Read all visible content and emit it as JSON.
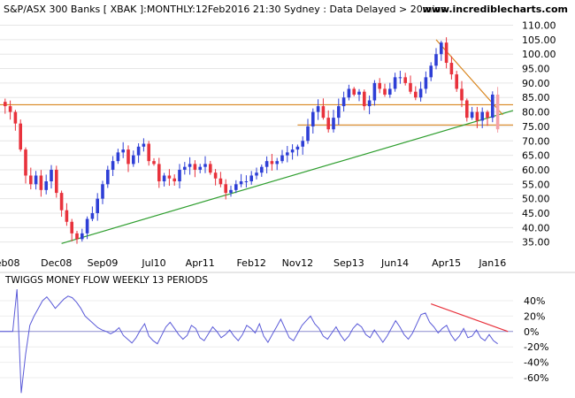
{
  "header": {
    "title": "S&P/ASX 300 Banks [ XBAK ]:MONTHLY:12Feb2016 21:30 Sydney : Data Delayed > 20mins",
    "site": "www.incrediblecharts.com"
  },
  "chart_data": [
    {
      "type": "candlestick",
      "title": "",
      "ylim": [
        30,
        112
      ],
      "yticks": [
        35,
        40,
        45,
        50,
        55,
        60,
        65,
        70,
        75,
        80,
        85,
        90,
        95,
        100,
        105,
        110
      ],
      "ytick_labels": [
        "35.00",
        "40.00",
        "45.00",
        "50.00",
        "55.00",
        "60.00",
        "65.00",
        "70.00",
        "75.00",
        "80.00",
        "85.00",
        "90.00",
        "95.00",
        "100.00",
        "105.00",
        "110.00"
      ],
      "x_labels": [
        {
          "label": "Feb08",
          "month": 1
        },
        {
          "label": "Dec08",
          "month": 11
        },
        {
          "label": "Sep09",
          "month": 20
        },
        {
          "label": "Jul10",
          "month": 30
        },
        {
          "label": "Apr11",
          "month": 39
        },
        {
          "label": "Feb12",
          "month": 49
        },
        {
          "label": "Nov12",
          "month": 58
        },
        {
          "label": "Sep13",
          "month": 68
        },
        {
          "label": "Jun14",
          "month": 77
        },
        {
          "label": "Apr15",
          "month": 87
        },
        {
          "label": "Jan16",
          "month": 96
        }
      ],
      "x_range_months": [
        0,
        100
      ],
      "up_color": "#2e3fd6",
      "down_color": "#e8323c",
      "last_color": "#f4a0a8",
      "closes": [
        82,
        80,
        76,
        67,
        58,
        55,
        58,
        53,
        56,
        60,
        52,
        46,
        42,
        38,
        36,
        38,
        43,
        45,
        50,
        55,
        60,
        63,
        66,
        67,
        62,
        65,
        68,
        69,
        63,
        62,
        56,
        58,
        57,
        56,
        60,
        61,
        62,
        60,
        61,
        62,
        59,
        57,
        55,
        52,
        53,
        55,
        56,
        56,
        58,
        59,
        61,
        63,
        62,
        63,
        65,
        66,
        67,
        68,
        70,
        75,
        80,
        82,
        78,
        74,
        78,
        82,
        85,
        88,
        86,
        87,
        82,
        84,
        90,
        88,
        86,
        88,
        92,
        92,
        90,
        87,
        85,
        88,
        92,
        96,
        100,
        104,
        97,
        93,
        88,
        84,
        78,
        80,
        77,
        80,
        78,
        86,
        74
      ],
      "levels": [
        {
          "name": "resistance",
          "value": 82.5,
          "from_month": 0,
          "to_month": 100,
          "color": "#d9861f"
        },
        {
          "name": "support",
          "value": 75.5,
          "from_month": 58,
          "to_month": 100,
          "color": "#d9861f"
        }
      ],
      "trendlines": [
        {
          "name": "rising-support-trendline",
          "from": [
            12,
            34.5
          ],
          "to": [
            100,
            80.5
          ],
          "color": "#2e9e2e"
        },
        {
          "name": "falling-trendline",
          "from": [
            85,
            105
          ],
          "to": [
            98,
            79
          ],
          "color": "#d9861f"
        }
      ]
    },
    {
      "type": "line",
      "title": "TWIGGS MONEY FLOW WEEKLY 13 PERIODS",
      "ylim": [
        -75,
        55
      ],
      "yticks": [
        40,
        20,
        0,
        -20,
        -40,
        -60
      ],
      "ytick_labels": [
        "40%",
        "20%",
        "0%",
        "-20%",
        "-40%",
        "-60%"
      ],
      "series_color": "#5a5ad8",
      "zero_color": "#8c8ccf",
      "values": [
        0,
        0,
        0,
        0,
        55,
        -80,
        -30,
        8,
        20,
        30,
        40,
        45,
        38,
        30,
        36,
        42,
        46,
        44,
        38,
        30,
        20,
        15,
        10,
        5,
        2,
        0,
        -3,
        0,
        5,
        -5,
        -10,
        -15,
        -8,
        2,
        10,
        -6,
        -12,
        -16,
        -5,
        6,
        12,
        4,
        -4,
        -10,
        -5,
        8,
        4,
        -8,
        -12,
        -3,
        6,
        0,
        -8,
        -4,
        2,
        -6,
        -12,
        -4,
        8,
        4,
        -2,
        10,
        -6,
        -14,
        -4,
        6,
        16,
        4,
        -8,
        -12,
        -2,
        8,
        14,
        20,
        10,
        4,
        -6,
        -10,
        -2,
        6,
        -4,
        -12,
        -6,
        4,
        10,
        6,
        -4,
        -8,
        2,
        -6,
        -14,
        -6,
        4,
        14,
        6,
        -4,
        -10,
        -2,
        10,
        22,
        24,
        12,
        6,
        -2,
        4,
        8,
        -4,
        -12,
        -6,
        4,
        -8,
        -6,
        2,
        -8,
        -12,
        -4,
        -12,
        -16
      ],
      "trendlines": [
        {
          "name": "indicator-falling-trendline",
          "from": [
            84,
            36
          ],
          "to": [
            99,
            0
          ],
          "color": "#e8323c"
        }
      ]
    }
  ]
}
